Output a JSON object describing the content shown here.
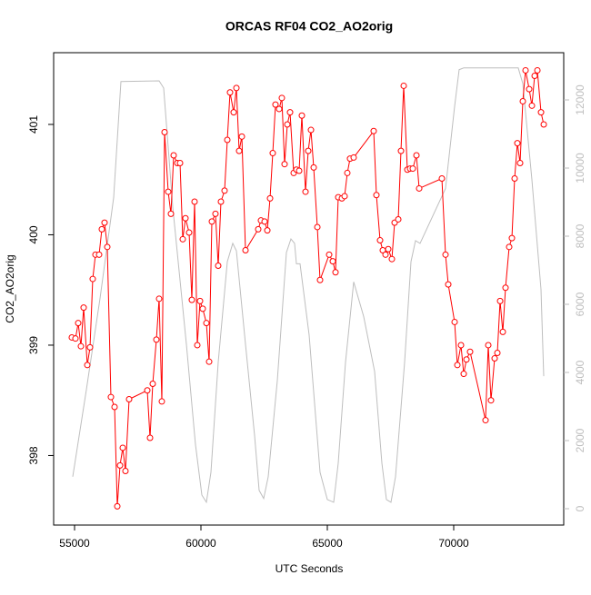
{
  "chart_data": {
    "type": "line",
    "title": "ORCAS RF04 CO2_AO2orig",
    "x_label": "UTC Seconds",
    "y_label": "CO2_AO2orig",
    "xlim": [
      54173,
      74352
    ],
    "xticks": [
      55000,
      60000,
      65000,
      70000
    ],
    "ylim": [
      397.37,
      401.65
    ],
    "yticks": [
      398,
      399,
      400,
      401
    ],
    "y2lim": [
      -480,
      13387
    ],
    "y2ticks": [
      0,
      2000,
      4000,
      6000,
      8000,
      10000,
      12000
    ],
    "series": [
      {
        "color": "#bebebe",
        "axis": "y2",
        "x": [
          54928,
          55468,
          56007,
          56547,
          56834,
          58345,
          58525,
          58885,
          59424,
          59784,
          60036,
          60216,
          60396,
          60683,
          61043,
          61259,
          61403,
          61763,
          62122,
          62302,
          62482,
          62662,
          63021,
          63381,
          63561,
          63705,
          63777,
          63921,
          64281,
          64712,
          65000,
          65252,
          65432,
          65719,
          66043,
          66439,
          66870,
          67158,
          67338,
          67518,
          67698,
          68057,
          68309,
          68489,
          68669,
          69676,
          70036,
          70216,
          70396,
          71655,
          72554,
          72734,
          73094,
          73454,
          73562
        ],
        "values": [
          940,
          3490,
          6170,
          9130,
          12540,
          12560,
          12350,
          8860,
          4830,
          1880,
          400,
          190,
          1070,
          4300,
          7250,
          7790,
          7570,
          4830,
          2150,
          540,
          300,
          940,
          3760,
          7520,
          7920,
          7790,
          7190,
          7190,
          5100,
          1070,
          270,
          190,
          1340,
          4300,
          6660,
          5640,
          4030,
          1340,
          270,
          190,
          940,
          4300,
          7250,
          7870,
          7790,
          9400,
          11810,
          12890,
          12940,
          12940,
          12940,
          12480,
          9660,
          6440,
          3890
        ]
      },
      {
        "color": "#ff0000",
        "markers": true,
        "x": [
          54892,
          55036,
          55144,
          55252,
          55360,
          55504,
          55611,
          55719,
          55827,
          55971,
          56079,
          56187,
          56295,
          56439,
          56583,
          56691,
          56799,
          56907,
          57014,
          57158,
          57878,
          57986,
          58093,
          58237,
          58345,
          58453,
          58561,
          58705,
          58813,
          58921,
          59065,
          59173,
          59281,
          59388,
          59532,
          59640,
          59748,
          59856,
          59964,
          60072,
          60216,
          60324,
          60432,
          60575,
          60683,
          60791,
          60935,
          61043,
          61151,
          61295,
          61403,
          61511,
          61619,
          61763,
          62266,
          62374,
          62518,
          62626,
          62734,
          62841,
          62949,
          63093,
          63201,
          63309,
          63417,
          63525,
          63669,
          63777,
          63885,
          63993,
          64137,
          64245,
          64353,
          64461,
          64605,
          64712,
          65072,
          65216,
          65324,
          65432,
          65576,
          65684,
          65791,
          65899,
          66043,
          66834,
          66942,
          67086,
          67194,
          67302,
          67410,
          67554,
          67662,
          67806,
          67914,
          68022,
          68166,
          68274,
          68382,
          68526,
          68633,
          69532,
          69676,
          69784,
          70036,
          70144,
          70288,
          70396,
          70504,
          70647,
          71259,
          71367,
          71475,
          71619,
          71727,
          71835,
          71943,
          72050,
          72194,
          72302,
          72410,
          72518,
          72626,
          72734,
          72842,
          72986,
          73094,
          73202,
          73310,
          73454,
          73562
        ],
        "values": [
          399.07,
          399.06,
          399.2,
          398.99,
          399.34,
          398.82,
          398.98,
          399.6,
          399.82,
          399.82,
          400.05,
          400.11,
          399.89,
          398.53,
          398.44,
          397.54,
          397.91,
          398.07,
          397.86,
          398.51,
          398.59,
          398.16,
          398.65,
          399.05,
          399.42,
          398.49,
          400.93,
          400.39,
          400.19,
          400.72,
          400.65,
          400.65,
          399.96,
          400.15,
          400.02,
          399.41,
          400.3,
          399.0,
          399.4,
          399.33,
          399.2,
          398.85,
          400.12,
          400.19,
          399.72,
          400.3,
          400.4,
          400.86,
          401.29,
          401.11,
          401.33,
          400.76,
          400.89,
          399.86,
          400.05,
          400.13,
          400.12,
          400.04,
          400.33,
          400.74,
          401.18,
          401.14,
          401.24,
          400.64,
          401.0,
          401.11,
          400.56,
          400.59,
          400.58,
          401.08,
          400.39,
          400.76,
          400.95,
          400.61,
          400.07,
          399.59,
          399.82,
          399.76,
          399.66,
          400.34,
          400.33,
          400.35,
          400.56,
          400.69,
          400.7,
          400.94,
          400.36,
          399.95,
          399.86,
          399.82,
          399.87,
          399.78,
          400.11,
          400.14,
          400.76,
          401.35,
          400.59,
          400.6,
          400.6,
          400.72,
          400.42,
          400.51,
          399.82,
          399.55,
          399.21,
          398.82,
          399.0,
          398.74,
          398.87,
          398.94,
          398.32,
          399.0,
          398.5,
          398.88,
          398.93,
          399.4,
          399.12,
          399.52,
          399.89,
          399.97,
          400.51,
          400.83,
          400.65,
          401.21,
          401.49,
          401.32,
          401.17,
          401.44,
          401.49,
          401.11,
          401.0
        ]
      }
    ]
  }
}
